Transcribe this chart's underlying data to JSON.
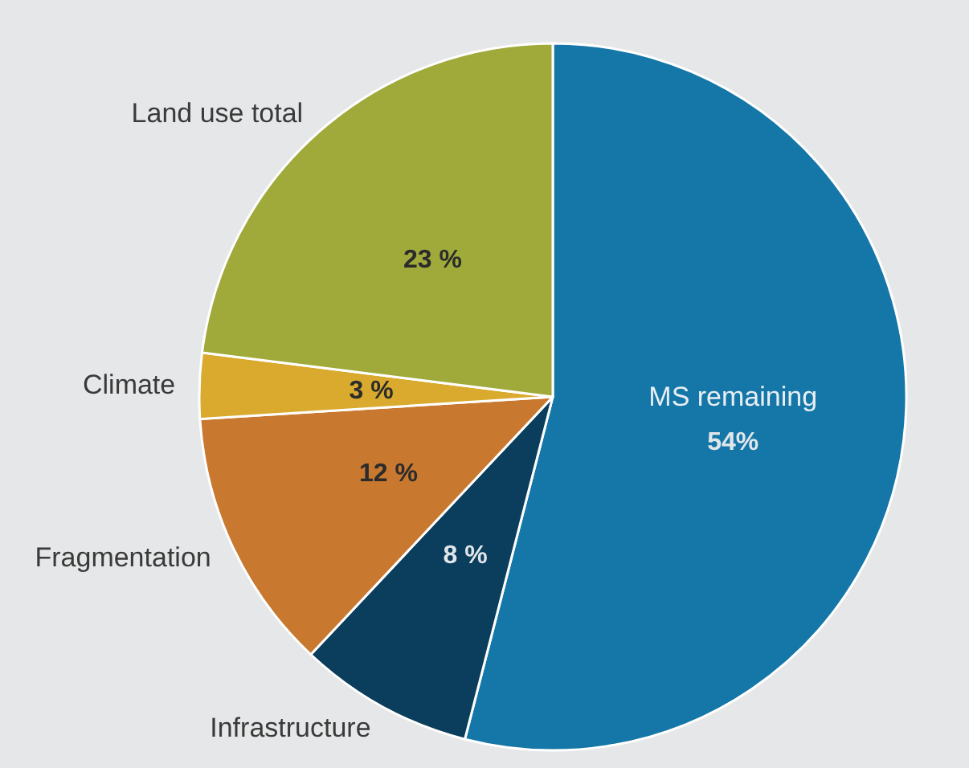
{
  "chart_data": {
    "type": "pie",
    "categories": [
      "MS remaining",
      "Infrastructure",
      "Fragmentation",
      "Climate",
      "Land use total"
    ],
    "values": [
      54,
      8,
      12,
      3,
      23
    ],
    "colors": [
      "#1477a8",
      "#0b3d5c",
      "#c8782f",
      "#d9aa2e",
      "#a0aa3a"
    ],
    "value_labels": [
      "54%",
      "8 %",
      "12 %",
      "3 %",
      "23 %"
    ],
    "legend": false
  }
}
